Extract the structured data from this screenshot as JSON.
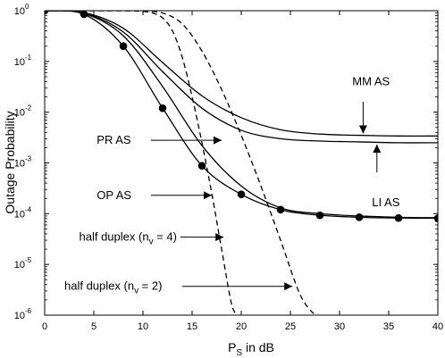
{
  "chart_data": {
    "type": "line",
    "title": "",
    "xlabel": "P",
    "xlabel_sub": "S",
    "xlabel_suffix": " in dB",
    "ylabel": "Outage Probability",
    "xlim": [
      0,
      40
    ],
    "ylim": [
      1e-06,
      1
    ],
    "y_scale": "log",
    "grid": false,
    "x_ticks": [
      0,
      5,
      10,
      15,
      20,
      25,
      30,
      35,
      40
    ],
    "x_tick_labels": [
      "0",
      "5",
      "10",
      "15",
      "20",
      "25",
      "30",
      "35",
      "40"
    ],
    "y_ticks": [
      1e-06,
      1e-05,
      0.0001,
      0.001,
      0.01,
      0.1,
      1
    ],
    "y_tick_labels": [
      {
        "base": "10",
        "exp": "-6"
      },
      {
        "base": "10",
        "exp": "-5"
      },
      {
        "base": "10",
        "exp": "-4"
      },
      {
        "base": "10",
        "exp": "-3"
      },
      {
        "base": "10",
        "exp": "-2"
      },
      {
        "base": "10",
        "exp": "-1"
      },
      {
        "base": "10",
        "exp": "0"
      }
    ],
    "series": [
      {
        "name": "MM AS",
        "style": "solid",
        "x": [
          0,
          4,
          8,
          12,
          16,
          20,
          24,
          28,
          32,
          36,
          40
        ],
        "y": [
          1.0,
          0.92,
          0.45,
          0.095,
          0.021,
          0.0078,
          0.0045,
          0.0037,
          0.0035,
          0.0034,
          0.0034
        ]
      },
      {
        "name": "PR AS",
        "style": "solid",
        "x": [
          0,
          4,
          8,
          12,
          16,
          20,
          24,
          28,
          32,
          36,
          40
        ],
        "y": [
          1.0,
          0.9,
          0.38,
          0.063,
          0.012,
          0.0044,
          0.003,
          0.0027,
          0.0026,
          0.0025,
          0.0025
        ]
      },
      {
        "name": "LI AS",
        "style": "solid",
        "x": [
          0,
          4,
          8,
          12,
          16,
          20,
          24,
          28,
          32,
          36,
          40
        ],
        "y": [
          1.0,
          0.88,
          0.32,
          0.032,
          0.0022,
          0.00035,
          0.00013,
          0.0001,
          9e-05,
          8.5e-05,
          8.3e-05
        ]
      },
      {
        "name": "OP AS",
        "style": "solid-markers",
        "x": [
          0,
          4,
          8,
          12,
          16,
          20,
          24,
          28,
          32,
          36,
          40
        ],
        "y": [
          1.0,
          0.85,
          0.2,
          0.012,
          0.00088,
          0.00024,
          0.00012,
          9.3e-05,
          8.5e-05,
          8.2e-05,
          8.1e-05
        ]
      },
      {
        "name": "half duplex (n_v = 2)",
        "style": "dashed",
        "x": [
          0,
          8,
          10,
          12,
          14,
          16,
          18,
          20,
          22,
          24,
          26,
          27.5
        ],
        "y": [
          1.0,
          1.0,
          0.98,
          0.9,
          0.55,
          0.16,
          0.028,
          0.0035,
          0.00035,
          3e-05,
          2.5e-06,
          1e-06
        ]
      },
      {
        "name": "half duplex (n_v = 4)",
        "style": "dashed",
        "x": [
          0,
          8,
          10,
          11,
          12,
          13,
          14,
          15,
          16,
          17,
          18,
          19,
          19.6
        ],
        "y": [
          1.0,
          1.0,
          0.97,
          0.9,
          0.72,
          0.4,
          0.12,
          0.02,
          0.0025,
          0.00025,
          2e-05,
          1.7e-06,
          1e-06
        ]
      }
    ],
    "annotations": [
      {
        "id": "mm",
        "text": "MM AS",
        "text_pos": [
          31.3,
          0.04
        ],
        "arrow_from": [
          32.4,
          0.016
        ],
        "arrow_to": [
          32.4,
          0.0038
        ]
      },
      {
        "id": "pr",
        "text": "PR AS",
        "text_pos": [
          5.3,
          0.0028
        ],
        "arrow_from": [
          10.8,
          0.0028
        ],
        "arrow_to": [
          18.0,
          0.0028
        ]
      },
      {
        "id": "li",
        "text": "LI AS",
        "text_pos": [
          33.3,
          0.000165
        ],
        "arrow_from": [
          33.8,
          0.00065
        ],
        "arrow_to": [
          33.8,
          0.0023
        ]
      },
      {
        "id": "op",
        "text": "OP AS",
        "text_pos": [
          5.3,
          0.00023
        ],
        "arrow_from": [
          10.8,
          0.00023
        ],
        "arrow_to": [
          17.0,
          0.00023
        ]
      },
      {
        "id": "hd4",
        "text": "half duplex (n",
        "text_sub": "v",
        "text_suffix": " = 4)",
        "text_pos": [
          3.5,
          3.45e-05
        ],
        "arrow_from": [
          13.8,
          3.45e-05
        ],
        "arrow_to": [
          18.2,
          3.45e-05
        ]
      },
      {
        "id": "hd2",
        "text": "half duplex (n",
        "text_sub": "v",
        "text_suffix": " = 2)",
        "text_pos": [
          2.0,
          3.7e-06
        ],
        "arrow_from": [
          14.0,
          3.7e-06
        ],
        "arrow_to": [
          25.2,
          3.7e-06
        ]
      }
    ]
  }
}
